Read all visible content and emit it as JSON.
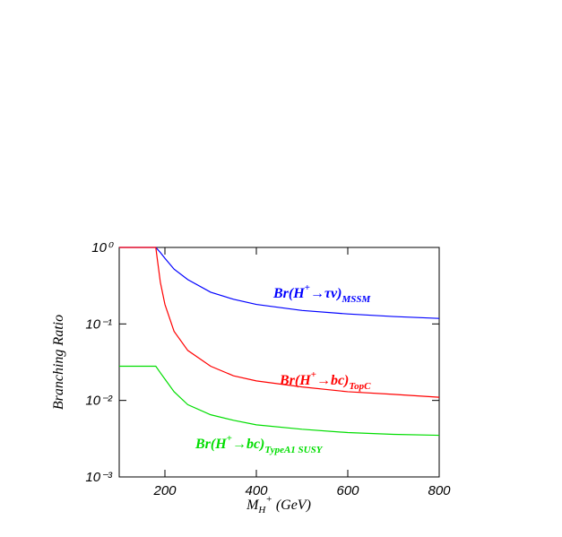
{
  "chart_data": {
    "type": "line",
    "xlabel": {
      "base": "M",
      "sub": "H",
      "sup": "+",
      "rest": " (GeV)"
    },
    "ylabel": "Branching Ratio",
    "x": [
      100,
      180,
      190,
      200,
      220,
      250,
      300,
      350,
      400,
      500,
      600,
      700,
      800
    ],
    "series": [
      {
        "color": "#0000ff",
        "values": [
          1,
          1,
          0.86,
          0.72,
          0.52,
          0.38,
          0.26,
          0.21,
          0.18,
          0.15,
          0.135,
          0.125,
          0.118
        ]
      },
      {
        "color": "#ff0000",
        "values": [
          1,
          1,
          0.35,
          0.18,
          0.08,
          0.045,
          0.028,
          0.021,
          0.018,
          0.015,
          0.013,
          0.012,
          0.011
        ]
      },
      {
        "color": "#00dd00",
        "values": [
          0.028,
          0.028,
          0.023,
          0.019,
          0.013,
          0.0088,
          0.0065,
          0.0055,
          0.0048,
          0.0042,
          0.0038,
          0.0036,
          0.0035
        ]
      }
    ],
    "annotations": [
      {
        "base": "Br(H",
        "sup": "+",
        "rest": "→τν)",
        "sub": "MSSM",
        "color": "#0000ff"
      },
      {
        "base": "Br(H",
        "sup": "+",
        "rest": "→bc)",
        "sub": "TopC",
        "color": "#ff0000"
      },
      {
        "base": "Br(H",
        "sup": "+",
        "rest": "→bc)",
        "sub": "TypeA1 SUSY",
        "color": "#00dd00"
      }
    ],
    "log_y": true,
    "xlim": [
      100,
      800
    ],
    "xticks": [
      200,
      400,
      600,
      800
    ],
    "ylim": [
      0.001,
      1
    ],
    "yticks": [
      {
        "value": 1,
        "label": "10⁰"
      },
      {
        "value": 0.1,
        "label": "10⁻¹"
      },
      {
        "value": 0.01,
        "label": "10⁻²"
      },
      {
        "value": 0.001,
        "label": "10⁻³"
      }
    ]
  }
}
